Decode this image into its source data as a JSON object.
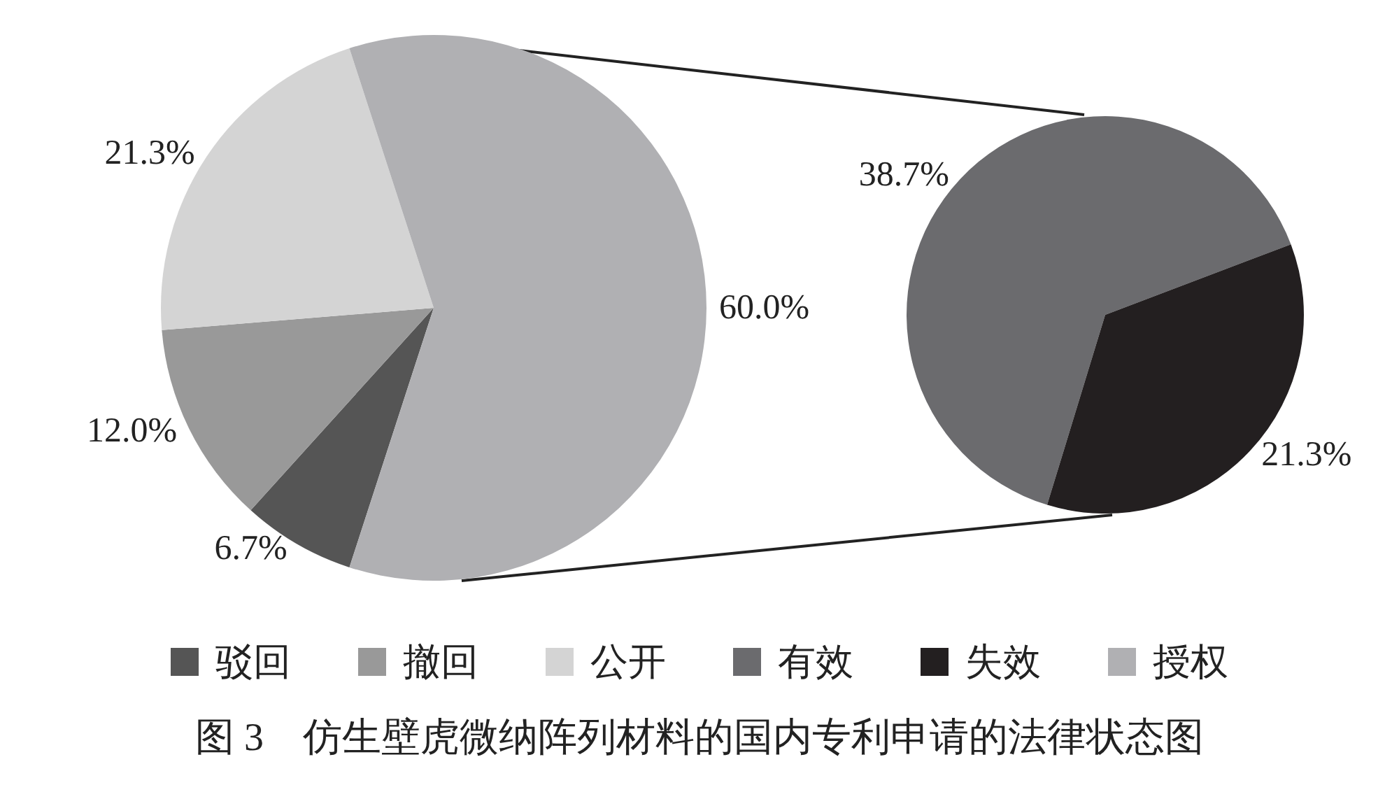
{
  "chart_data": [
    {
      "type": "pie",
      "categories": [
        "驳回",
        "撤回",
        "公开",
        "授权"
      ],
      "values": [
        6.7,
        12.0,
        21.3,
        60.0
      ],
      "colors": [
        "#555555",
        "#999999",
        "#d4d4d4",
        "#b0b0b3"
      ],
      "value_labels": [
        "6.7%",
        "12.0%",
        "21.3%",
        "60.0%"
      ],
      "legend": "bottom",
      "annotations": [
        "图 3　仿生壁虎微纳阵列材料的国内专利申请的法律状态图"
      ]
    },
    {
      "type": "pie",
      "categories": [
        "有效",
        "失效"
      ],
      "values": [
        38.7,
        21.3
      ],
      "colors": [
        "#6b6b6e",
        "#231f20"
      ],
      "value_labels": [
        "38.7%",
        "21.3%"
      ],
      "legend": "bottom"
    }
  ]
}
